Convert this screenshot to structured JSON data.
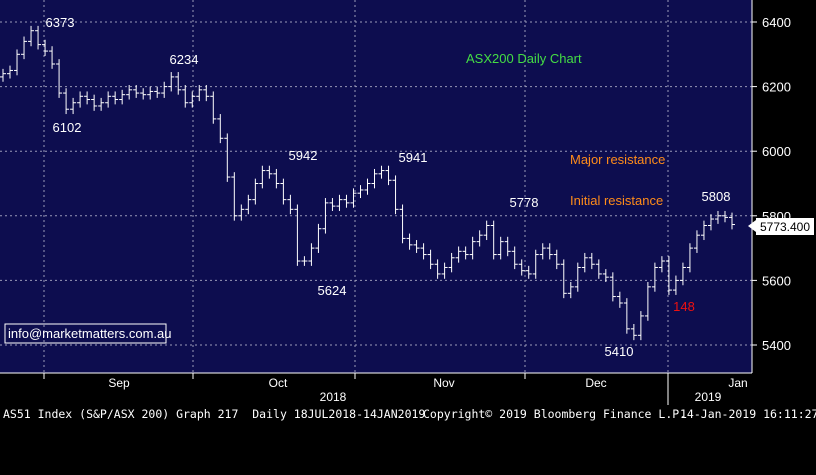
{
  "chart_data": {
    "type": "ohlc",
    "title": "ASX200 Daily Chart",
    "ylim": [
      5350,
      6450
    ],
    "y_ticks": [
      5400,
      5600,
      5800,
      6000,
      6200,
      6400
    ],
    "x_labels": [
      "Sep",
      "Oct",
      "Nov",
      "Dec",
      "Jan"
    ],
    "year_labels": [
      "2018",
      "2019"
    ],
    "last_price": "5773.400",
    "last_value": 5773.4,
    "grid": true,
    "colors": {
      "background": "#0d0d4f",
      "bars": "#ffffff",
      "grid": "#9a9ab8",
      "title": "#44dd44",
      "resistance": "#ff8c1a",
      "highlight": "#ee1111"
    },
    "levels": [
      {
        "label": "Major resistance",
        "value": 5990
      },
      {
        "label": "Initial resistance",
        "value": 5870
      }
    ],
    "annotations": [
      {
        "text": "6373",
        "value": 6373
      },
      {
        "text": "6102",
        "value": 6102
      },
      {
        "text": "6234",
        "value": 6234
      },
      {
        "text": "5942",
        "value": 5942
      },
      {
        "text": "5624",
        "value": 5624
      },
      {
        "text": "5941",
        "value": 5941
      },
      {
        "text": "5778",
        "value": 5778
      },
      {
        "text": "5410",
        "value": 5410
      },
      {
        "text": "5808",
        "value": 5808
      },
      {
        "text": "148",
        "value": 148
      }
    ],
    "series": [
      {
        "values": [
          6240,
          6250,
          6300,
          6340,
          6373,
          6330,
          6310,
          6270,
          6180,
          6130,
          6150,
          6170,
          6160,
          6140,
          6150,
          6170,
          6160,
          6175,
          6190,
          6180,
          6175,
          6185,
          6180,
          6200,
          6230,
          6190,
          6150,
          6170,
          6190,
          6170,
          6100,
          6040,
          5920,
          5800,
          5820,
          5850,
          5900,
          5940,
          5930,
          5900,
          5850,
          5820,
          5660,
          5660,
          5700,
          5760,
          5840,
          5830,
          5850,
          5840,
          5870,
          5880,
          5900,
          5930,
          5940,
          5910,
          5820,
          5730,
          5710,
          5700,
          5680,
          5650,
          5620,
          5640,
          5670,
          5690,
          5680,
          5720,
          5740,
          5770,
          5680,
          5720,
          5690,
          5650,
          5630,
          5620,
          5680,
          5700,
          5680,
          5650,
          5560,
          5580,
          5640,
          5670,
          5650,
          5620,
          5610,
          5550,
          5530,
          5450,
          5430,
          5490,
          5580,
          5640,
          5660,
          5570,
          5600,
          5640,
          5700,
          5740,
          5770,
          5790,
          5800,
          5795,
          5773
        ]
      }
    ]
  },
  "legend_box": {
    "text": "info@marketmatters.com.au"
  },
  "footer": {
    "left": "AS51 Index (S&P/ASX 200) Graph 217  Daily 18JUL2018-14JAN2019",
    "mid": "Copyright© 2019 Bloomberg Finance L.P.",
    "right": "14-Jan-2019 16:11:27"
  }
}
